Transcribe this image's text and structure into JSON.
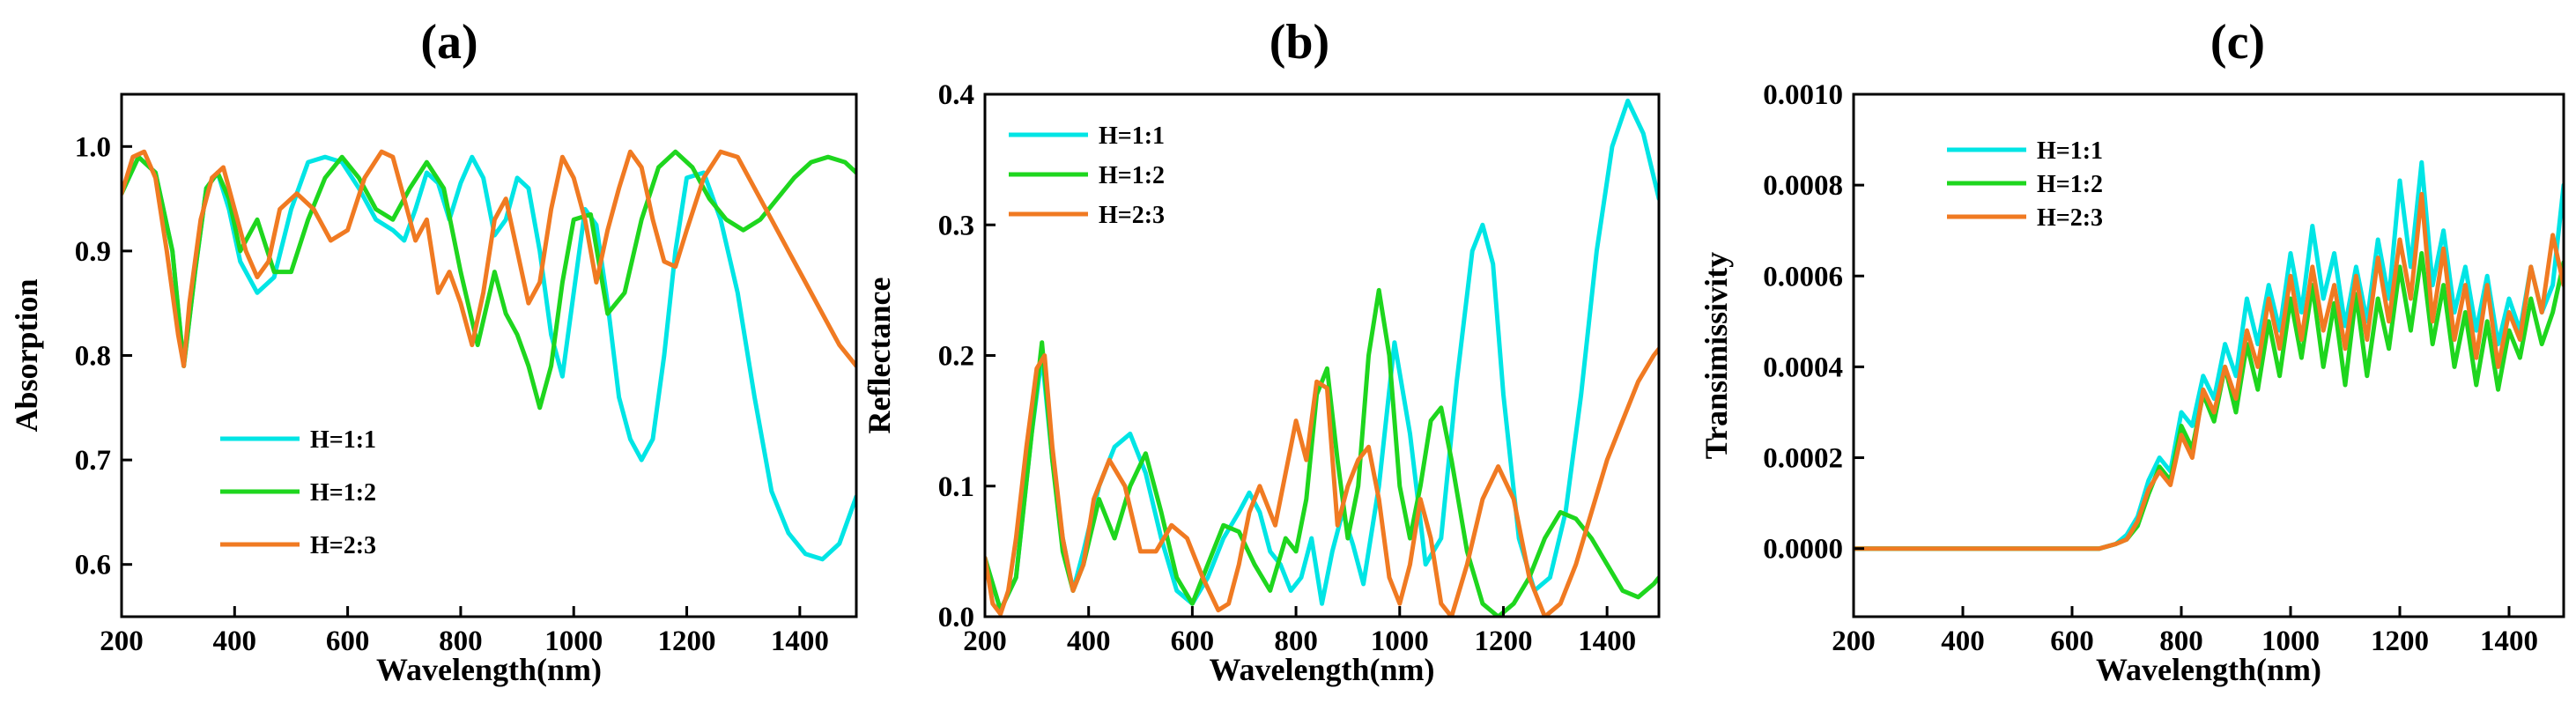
{
  "chart_data": [
    {
      "type": "line",
      "panel_label": "(a)",
      "xlabel": "Wavelength(nm)",
      "ylabel": "Absorption",
      "xlim": [
        200,
        1500
      ],
      "ylim": [
        0.55,
        1.05
      ],
      "xticks": [
        "200",
        "400",
        "600",
        "800",
        "1000",
        "1200",
        "1400"
      ],
      "yticks": [
        "0.6",
        "0.7",
        "0.8",
        "0.9",
        "1.0"
      ],
      "legend_position": "bottom-left",
      "series": [
        {
          "name": "H=1:1",
          "color": "#00e5e5",
          "x": [
            200,
            230,
            260,
            290,
            310,
            330,
            350,
            370,
            390,
            410,
            440,
            470,
            500,
            530,
            560,
            590,
            620,
            650,
            680,
            700,
            720,
            740,
            760,
            780,
            800,
            820,
            840,
            860,
            880,
            900,
            920,
            940,
            960,
            980,
            1000,
            1020,
            1040,
            1060,
            1080,
            1100,
            1120,
            1140,
            1160,
            1180,
            1200,
            1230,
            1260,
            1290,
            1320,
            1350,
            1380,
            1410,
            1440,
            1470,
            1500
          ],
          "y": [
            0.955,
            0.99,
            0.975,
            0.9,
            0.79,
            0.88,
            0.96,
            0.975,
            0.94,
            0.89,
            0.86,
            0.875,
            0.94,
            0.985,
            0.99,
            0.985,
            0.96,
            0.93,
            0.92,
            0.91,
            0.94,
            0.975,
            0.965,
            0.93,
            0.965,
            0.99,
            0.97,
            0.915,
            0.93,
            0.97,
            0.96,
            0.9,
            0.82,
            0.78,
            0.86,
            0.94,
            0.925,
            0.85,
            0.76,
            0.72,
            0.7,
            0.72,
            0.8,
            0.9,
            0.97,
            0.975,
            0.93,
            0.86,
            0.76,
            0.67,
            0.63,
            0.61,
            0.605,
            0.62,
            0.665
          ]
        },
        {
          "name": "H=1:2",
          "color": "#1ed61e",
          "x": [
            200,
            230,
            260,
            290,
            310,
            330,
            350,
            370,
            390,
            410,
            440,
            470,
            500,
            530,
            560,
            590,
            620,
            650,
            680,
            710,
            740,
            770,
            800,
            830,
            860,
            880,
            900,
            920,
            940,
            960,
            980,
            1000,
            1030,
            1060,
            1090,
            1120,
            1150,
            1180,
            1210,
            1240,
            1270,
            1300,
            1330,
            1360,
            1390,
            1420,
            1450,
            1480,
            1500
          ],
          "y": [
            0.955,
            0.99,
            0.975,
            0.9,
            0.79,
            0.88,
            0.96,
            0.975,
            0.95,
            0.9,
            0.93,
            0.88,
            0.88,
            0.93,
            0.97,
            0.99,
            0.97,
            0.94,
            0.93,
            0.96,
            0.985,
            0.96,
            0.88,
            0.81,
            0.88,
            0.84,
            0.82,
            0.79,
            0.75,
            0.79,
            0.87,
            0.93,
            0.935,
            0.84,
            0.86,
            0.93,
            0.98,
            0.995,
            0.98,
            0.95,
            0.93,
            0.92,
            0.93,
            0.95,
            0.97,
            0.985,
            0.99,
            0.985,
            0.975
          ]
        },
        {
          "name": "H=2:3",
          "color": "#f07a22",
          "x": [
            200,
            220,
            240,
            260,
            280,
            300,
            310,
            320,
            340,
            360,
            380,
            400,
            420,
            440,
            460,
            480,
            510,
            540,
            570,
            600,
            630,
            660,
            680,
            700,
            720,
            740,
            760,
            780,
            800,
            820,
            840,
            860,
            880,
            900,
            920,
            940,
            960,
            980,
            1000,
            1020,
            1040,
            1060,
            1080,
            1100,
            1120,
            1140,
            1160,
            1180,
            1200,
            1230,
            1260,
            1290,
            1320,
            1350,
            1380,
            1410,
            1440,
            1470,
            1500
          ],
          "y": [
            0.955,
            0.99,
            0.995,
            0.97,
            0.9,
            0.82,
            0.79,
            0.85,
            0.93,
            0.97,
            0.98,
            0.94,
            0.9,
            0.875,
            0.89,
            0.94,
            0.955,
            0.94,
            0.91,
            0.92,
            0.97,
            0.995,
            0.99,
            0.95,
            0.91,
            0.93,
            0.86,
            0.88,
            0.85,
            0.81,
            0.86,
            0.93,
            0.95,
            0.9,
            0.85,
            0.87,
            0.94,
            0.99,
            0.97,
            0.93,
            0.87,
            0.92,
            0.96,
            0.995,
            0.98,
            0.93,
            0.89,
            0.885,
            0.92,
            0.97,
            0.995,
            0.99,
            0.96,
            0.93,
            0.9,
            0.87,
            0.84,
            0.81,
            0.79
          ]
        }
      ]
    },
    {
      "type": "line",
      "panel_label": "(b)",
      "xlabel": "Wavelength(nm)",
      "ylabel": "Reflectance",
      "xlim": [
        200,
        1500
      ],
      "ylim": [
        0,
        0.4
      ],
      "xticks": [
        "200",
        "400",
        "600",
        "800",
        "1000",
        "1200",
        "1400"
      ],
      "yticks": [
        "0.0",
        "0.1",
        "0.2",
        "0.3",
        "0.4"
      ],
      "legend_position": "top-left",
      "series": [
        {
          "name": "H=1:1",
          "color": "#00e5e5",
          "x": [
            200,
            230,
            260,
            290,
            310,
            330,
            350,
            370,
            390,
            420,
            450,
            480,
            510,
            540,
            570,
            600,
            630,
            660,
            690,
            710,
            730,
            750,
            770,
            790,
            810,
            830,
            850,
            870,
            890,
            910,
            930,
            960,
            990,
            1020,
            1050,
            1080,
            1110,
            1140,
            1160,
            1180,
            1200,
            1230,
            1260,
            1290,
            1320,
            1350,
            1380,
            1410,
            1440,
            1470,
            1500
          ],
          "y": [
            0.045,
            0.005,
            0.03,
            0.14,
            0.2,
            0.12,
            0.06,
            0.02,
            0.05,
            0.1,
            0.13,
            0.14,
            0.11,
            0.06,
            0.02,
            0.01,
            0.03,
            0.06,
            0.08,
            0.095,
            0.08,
            0.05,
            0.04,
            0.02,
            0.03,
            0.06,
            0.01,
            0.05,
            0.08,
            0.055,
            0.025,
            0.1,
            0.21,
            0.14,
            0.04,
            0.06,
            0.18,
            0.28,
            0.3,
            0.27,
            0.17,
            0.06,
            0.02,
            0.03,
            0.08,
            0.17,
            0.28,
            0.36,
            0.395,
            0.37,
            0.32
          ]
        },
        {
          "name": "H=1:2",
          "color": "#1ed61e",
          "x": [
            200,
            230,
            260,
            290,
            310,
            330,
            350,
            370,
            390,
            420,
            450,
            480,
            510,
            540,
            570,
            600,
            630,
            660,
            690,
            720,
            750,
            780,
            800,
            820,
            840,
            860,
            880,
            900,
            920,
            940,
            960,
            980,
            1000,
            1020,
            1040,
            1060,
            1080,
            1100,
            1130,
            1160,
            1190,
            1220,
            1250,
            1280,
            1310,
            1340,
            1370,
            1400,
            1430,
            1460,
            1490,
            1500
          ],
          "y": [
            0.045,
            0.005,
            0.03,
            0.14,
            0.21,
            0.12,
            0.05,
            0.02,
            0.04,
            0.09,
            0.06,
            0.1,
            0.125,
            0.08,
            0.03,
            0.01,
            0.04,
            0.07,
            0.065,
            0.04,
            0.02,
            0.06,
            0.05,
            0.09,
            0.17,
            0.19,
            0.12,
            0.06,
            0.1,
            0.2,
            0.25,
            0.2,
            0.1,
            0.06,
            0.1,
            0.15,
            0.16,
            0.12,
            0.05,
            0.01,
            0.0,
            0.01,
            0.03,
            0.06,
            0.08,
            0.075,
            0.06,
            0.04,
            0.02,
            0.015,
            0.025,
            0.03
          ]
        },
        {
          "name": "H=2:3",
          "color": "#f07a22",
          "x": [
            200,
            215,
            230,
            245,
            260,
            280,
            300,
            315,
            330,
            350,
            370,
            390,
            410,
            440,
            470,
            500,
            530,
            560,
            590,
            620,
            650,
            670,
            690,
            710,
            730,
            760,
            780,
            800,
            820,
            840,
            860,
            880,
            900,
            920,
            940,
            960,
            980,
            1000,
            1020,
            1040,
            1060,
            1080,
            1100,
            1130,
            1160,
            1190,
            1220,
            1250,
            1280,
            1310,
            1340,
            1370,
            1400,
            1430,
            1460,
            1490,
            1500
          ],
          "y": [
            0.045,
            0.01,
            0.002,
            0.02,
            0.06,
            0.13,
            0.19,
            0.2,
            0.13,
            0.06,
            0.02,
            0.04,
            0.09,
            0.12,
            0.1,
            0.05,
            0.05,
            0.07,
            0.06,
            0.03,
            0.005,
            0.01,
            0.04,
            0.08,
            0.1,
            0.07,
            0.11,
            0.15,
            0.12,
            0.18,
            0.175,
            0.07,
            0.1,
            0.12,
            0.13,
            0.09,
            0.03,
            0.01,
            0.04,
            0.09,
            0.06,
            0.01,
            0.0,
            0.04,
            0.09,
            0.115,
            0.09,
            0.03,
            0.0,
            0.01,
            0.04,
            0.08,
            0.12,
            0.15,
            0.18,
            0.2,
            0.205
          ]
        }
      ]
    },
    {
      "type": "line",
      "panel_label": "(c)",
      "xlabel": "Wavelength(nm)",
      "ylabel": "Transimissivity",
      "xlim": [
        200,
        1500
      ],
      "ylim": [
        -0.00015,
        0.001
      ],
      "xticks": [
        "200",
        "400",
        "600",
        "800",
        "1000",
        "1200",
        "1400"
      ],
      "yticks": [
        "0.0000",
        "0.0002",
        "0.0004",
        "0.0006",
        "0.0008",
        "0.0010"
      ],
      "legend_position": "top-left",
      "series": [
        {
          "name": "H=1:1",
          "color": "#00e5e5",
          "x": [
            200,
            300,
            400,
            500,
            600,
            650,
            680,
            700,
            720,
            740,
            760,
            780,
            800,
            820,
            840,
            860,
            880,
            900,
            920,
            940,
            960,
            980,
            1000,
            1020,
            1040,
            1060,
            1080,
            1100,
            1120,
            1140,
            1160,
            1180,
            1200,
            1220,
            1240,
            1260,
            1280,
            1300,
            1320,
            1340,
            1360,
            1380,
            1400,
            1420,
            1440,
            1460,
            1480,
            1500
          ],
          "y": [
            0,
            0,
            0,
            0,
            0,
            0,
            1e-05,
            3e-05,
            7e-05,
            0.00015,
            0.0002,
            0.00017,
            0.0003,
            0.00027,
            0.00038,
            0.00033,
            0.00045,
            0.00038,
            0.00055,
            0.00045,
            0.00058,
            0.00048,
            0.00065,
            0.00052,
            0.00071,
            0.00055,
            0.00065,
            0.00049,
            0.00062,
            0.0005,
            0.00068,
            0.00055,
            0.00081,
            0.00062,
            0.00085,
            0.00058,
            0.0007,
            0.00052,
            0.00062,
            0.00048,
            0.0006,
            0.00045,
            0.00055,
            0.00048,
            0.00062,
            0.00052,
            0.00058,
            0.0008
          ]
        },
        {
          "name": "H=1:2",
          "color": "#1ed61e",
          "x": [
            200,
            300,
            400,
            500,
            600,
            650,
            680,
            700,
            720,
            740,
            760,
            780,
            800,
            820,
            840,
            860,
            880,
            900,
            920,
            940,
            960,
            980,
            1000,
            1020,
            1040,
            1060,
            1080,
            1100,
            1120,
            1140,
            1160,
            1180,
            1200,
            1220,
            1240,
            1260,
            1280,
            1300,
            1320,
            1340,
            1360,
            1380,
            1400,
            1420,
            1440,
            1460,
            1480,
            1500
          ],
          "y": [
            0,
            0,
            0,
            0,
            0,
            0,
            1e-05,
            2e-05,
            5e-05,
            0.00012,
            0.00018,
            0.00015,
            0.00027,
            0.00022,
            0.00034,
            0.00028,
            0.0004,
            0.0003,
            0.00045,
            0.00035,
            0.0005,
            0.00038,
            0.00055,
            0.00042,
            0.00058,
            0.0004,
            0.00054,
            0.00036,
            0.00056,
            0.00038,
            0.00055,
            0.00044,
            0.00062,
            0.00048,
            0.00065,
            0.00045,
            0.00058,
            0.0004,
            0.00052,
            0.00036,
            0.0005,
            0.00035,
            0.00048,
            0.00042,
            0.00055,
            0.00045,
            0.00052,
            0.00063
          ]
        },
        {
          "name": "H=2:3",
          "color": "#f07a22",
          "x": [
            200,
            300,
            400,
            500,
            600,
            650,
            680,
            700,
            720,
            740,
            760,
            780,
            800,
            820,
            840,
            860,
            880,
            900,
            920,
            940,
            960,
            980,
            1000,
            1020,
            1040,
            1060,
            1080,
            1100,
            1120,
            1140,
            1160,
            1180,
            1200,
            1220,
            1240,
            1260,
            1280,
            1300,
            1320,
            1340,
            1360,
            1380,
            1400,
            1420,
            1440,
            1460,
            1480,
            1500
          ],
          "y": [
            0,
            0,
            0,
            0,
            0,
            0,
            1e-05,
            2e-05,
            6e-05,
            0.00013,
            0.00017,
            0.00014,
            0.00025,
            0.0002,
            0.00035,
            0.0003,
            0.0004,
            0.00033,
            0.00048,
            0.0004,
            0.00055,
            0.00044,
            0.0006,
            0.00046,
            0.00062,
            0.00048,
            0.00058,
            0.00044,
            0.0006,
            0.00046,
            0.00064,
            0.0005,
            0.00068,
            0.00055,
            0.00078,
            0.0005,
            0.00066,
            0.00046,
            0.00058,
            0.00042,
            0.00058,
            0.0004,
            0.00052,
            0.00046,
            0.00062,
            0.00052,
            0.00069,
            0.00058
          ]
        }
      ]
    }
  ]
}
